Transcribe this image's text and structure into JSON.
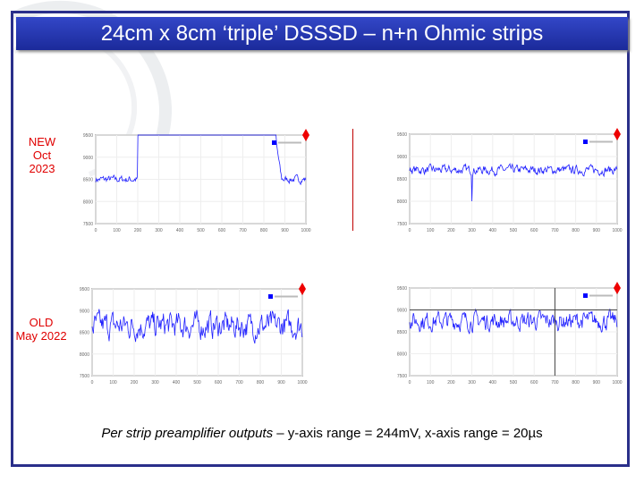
{
  "title": "24cm x 8cm ‘triple’ DSSSD – n+n Ohmic strips",
  "labels": {
    "new": "NEW",
    "new_date": "Oct 2023",
    "old": "OLD",
    "old_date": "May 2022"
  },
  "caption": {
    "italic": "Per strip preamplifier outputs",
    "rest": " – y-axis range = 244mV, x-axis range = 20µs"
  },
  "colors": {
    "trace": "#2020ff",
    "marker": "#ee0000",
    "title_bg": "#2336b0"
  },
  "chart_data": [
    {
      "type": "line",
      "id": "new-1",
      "xlim": [
        0,
        1000
      ],
      "ylim": [
        7500,
        9500
      ],
      "xticks": [
        "0",
        "100",
        "200",
        "300",
        "400",
        "500",
        "600",
        "700",
        "800",
        "900",
        "1000"
      ],
      "yticks": [
        "7500",
        "8000",
        "8500",
        "9000",
        "9500"
      ],
      "mean": 8500,
      "noise": 90,
      "saturated_range": [
        200,
        860
      ]
    },
    {
      "type": "line",
      "id": "new-2",
      "xlim": [
        0,
        1000
      ],
      "ylim": [
        7500,
        9500
      ],
      "xticks": [
        "0",
        "100",
        "200",
        "300",
        "400",
        "500",
        "600",
        "700",
        "800",
        "900",
        "1000"
      ],
      "yticks": [
        "7500",
        "8000",
        "8500",
        "9000",
        "9500"
      ],
      "mean": 8700,
      "noise": 110,
      "spike": {
        "x": 300,
        "y": 8000
      }
    },
    {
      "type": "line",
      "id": "old-1",
      "xlim": [
        0,
        1000
      ],
      "ylim": [
        7500,
        9500
      ],
      "xticks": [
        "0",
        "100",
        "200",
        "300",
        "400",
        "500",
        "600",
        "700",
        "800",
        "900",
        "1000"
      ],
      "yticks": [
        "7500",
        "8000",
        "8500",
        "9000",
        "9500"
      ],
      "mean": 8650,
      "noise": 330
    },
    {
      "type": "line",
      "id": "old-2",
      "xlim": [
        0,
        1000
      ],
      "ylim": [
        7500,
        9500
      ],
      "xticks": [
        "0",
        "100",
        "200",
        "300",
        "400",
        "500",
        "600",
        "700",
        "800",
        "900",
        "1000"
      ],
      "yticks": [
        "7500",
        "8000",
        "8500",
        "9000",
        "9500"
      ],
      "mean": 8750,
      "noise": 230,
      "cursor": {
        "x": 700,
        "y": 9000
      }
    }
  ]
}
